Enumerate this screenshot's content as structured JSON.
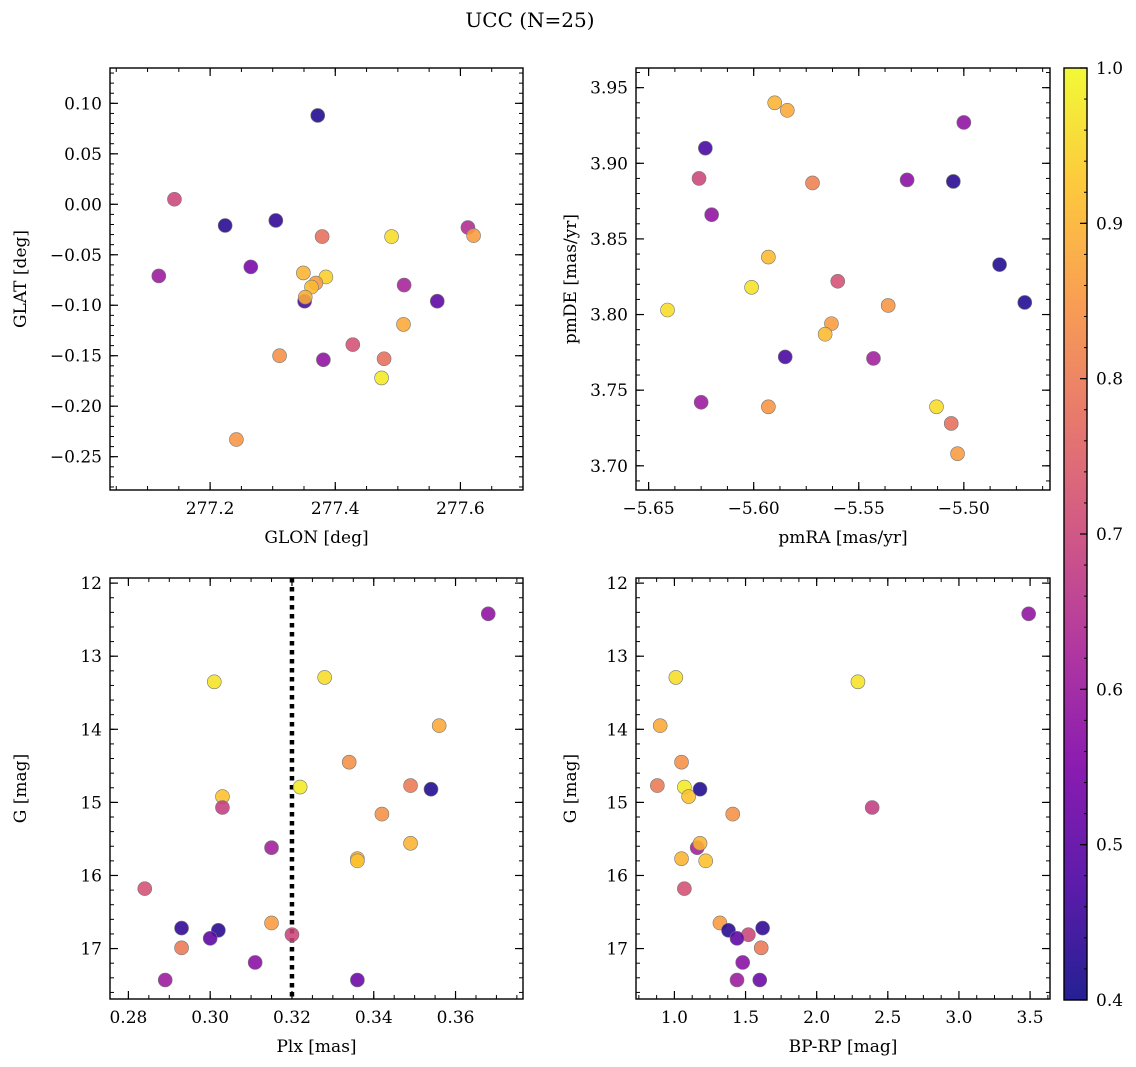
{
  "title": "UCC (N=25)",
  "colorbar": {
    "min": 0.4,
    "max": 1.0,
    "ticks": [
      "0.4",
      "0.5",
      "0.6",
      "0.7",
      "0.8",
      "0.9",
      "1.0"
    ],
    "tick_values": [
      0.4,
      0.5,
      0.6,
      0.7,
      0.8,
      0.9,
      1.0
    ],
    "colormap": "plasma"
  },
  "chart_data": [
    {
      "type": "scatter",
      "name": "GLON-GLAT",
      "xlabel": "GLON [deg]",
      "ylabel": "GLAT [deg]",
      "xlim": [
        277.04,
        277.7
      ],
      "ylim": [
        -0.283,
        0.135
      ],
      "x_ticks": [
        277.2,
        277.4,
        277.6
      ],
      "x_tick_labels": [
        "277.2",
        "277.4",
        "277.6"
      ],
      "y_ticks": [
        0.1,
        0.05,
        0.0,
        -0.05,
        -0.1,
        -0.15,
        -0.2,
        -0.25
      ],
      "y_tick_labels": [
        "0.10",
        "0.05",
        "0.00",
        "−0.05",
        "−0.10",
        "−0.15",
        "−0.20",
        "−0.25"
      ],
      "points": [
        {
          "x": 277.372,
          "y": 0.088,
          "c": 0.42
        },
        {
          "x": 277.143,
          "y": 0.005,
          "c": 0.7
        },
        {
          "x": 277.224,
          "y": -0.021,
          "c": 0.43
        },
        {
          "x": 277.305,
          "y": -0.016,
          "c": 0.44
        },
        {
          "x": 277.379,
          "y": -0.032,
          "c": 0.78
        },
        {
          "x": 277.49,
          "y": -0.032,
          "c": 0.96
        },
        {
          "x": 277.612,
          "y": -0.023,
          "c": 0.64
        },
        {
          "x": 277.621,
          "y": -0.031,
          "c": 0.86
        },
        {
          "x": 277.118,
          "y": -0.071,
          "c": 0.6
        },
        {
          "x": 277.265,
          "y": -0.062,
          "c": 0.54
        },
        {
          "x": 277.349,
          "y": -0.068,
          "c": 0.9
        },
        {
          "x": 277.385,
          "y": -0.072,
          "c": 0.94
        },
        {
          "x": 277.369,
          "y": -0.078,
          "c": 0.86
        },
        {
          "x": 277.362,
          "y": -0.082,
          "c": 0.91
        },
        {
          "x": 277.351,
          "y": -0.096,
          "c": 0.47
        },
        {
          "x": 277.352,
          "y": -0.092,
          "c": 0.89
        },
        {
          "x": 277.51,
          "y": -0.08,
          "c": 0.62
        },
        {
          "x": 277.563,
          "y": -0.096,
          "c": 0.5
        },
        {
          "x": 277.509,
          "y": -0.119,
          "c": 0.88
        },
        {
          "x": 277.311,
          "y": -0.15,
          "c": 0.84
        },
        {
          "x": 277.381,
          "y": -0.154,
          "c": 0.58
        },
        {
          "x": 277.428,
          "y": -0.139,
          "c": 0.72
        },
        {
          "x": 277.478,
          "y": -0.153,
          "c": 0.78
        },
        {
          "x": 277.474,
          "y": -0.172,
          "c": 0.98
        },
        {
          "x": 277.242,
          "y": -0.233,
          "c": 0.85
        }
      ]
    },
    {
      "type": "scatter",
      "name": "pmRA-pmDE",
      "xlabel": "pmRA [mas/yr]",
      "ylabel": "pmDE [mas/yr]",
      "xlim": [
        -5.656,
        -5.459
      ],
      "ylim": [
        3.684,
        3.963
      ],
      "x_ticks": [
        -5.65,
        -5.6,
        -5.55,
        -5.5
      ],
      "x_tick_labels": [
        "−5.65",
        "−5.60",
        "−5.55",
        "−5.50"
      ],
      "y_ticks": [
        3.7,
        3.75,
        3.8,
        3.85,
        3.9,
        3.95
      ],
      "y_tick_labels": [
        "3.70",
        "3.75",
        "3.80",
        "3.85",
        "3.90",
        "3.95"
      ],
      "points": [
        {
          "x": -5.59,
          "y": 3.94,
          "c": 0.9
        },
        {
          "x": -5.584,
          "y": 3.935,
          "c": 0.88
        },
        {
          "x": -5.5,
          "y": 3.927,
          "c": 0.58
        },
        {
          "x": -5.623,
          "y": 3.91,
          "c": 0.47
        },
        {
          "x": -5.626,
          "y": 3.89,
          "c": 0.7
        },
        {
          "x": -5.572,
          "y": 3.887,
          "c": 0.81
        },
        {
          "x": -5.527,
          "y": 3.889,
          "c": 0.57
        },
        {
          "x": -5.505,
          "y": 3.888,
          "c": 0.43
        },
        {
          "x": -5.62,
          "y": 3.866,
          "c": 0.58
        },
        {
          "x": -5.593,
          "y": 3.838,
          "c": 0.91
        },
        {
          "x": -5.483,
          "y": 3.833,
          "c": 0.42
        },
        {
          "x": -5.56,
          "y": 3.822,
          "c": 0.72
        },
        {
          "x": -5.601,
          "y": 3.818,
          "c": 0.97
        },
        {
          "x": -5.641,
          "y": 3.803,
          "c": 0.96
        },
        {
          "x": -5.536,
          "y": 3.806,
          "c": 0.85
        },
        {
          "x": -5.471,
          "y": 3.808,
          "c": 0.42
        },
        {
          "x": -5.563,
          "y": 3.794,
          "c": 0.86
        },
        {
          "x": -5.566,
          "y": 3.787,
          "c": 0.91
        },
        {
          "x": -5.585,
          "y": 3.772,
          "c": 0.47
        },
        {
          "x": -5.543,
          "y": 3.771,
          "c": 0.61
        },
        {
          "x": -5.625,
          "y": 3.742,
          "c": 0.6
        },
        {
          "x": -5.593,
          "y": 3.739,
          "c": 0.85
        },
        {
          "x": -5.513,
          "y": 3.739,
          "c": 0.96
        },
        {
          "x": -5.506,
          "y": 3.728,
          "c": 0.78
        },
        {
          "x": -5.503,
          "y": 3.708,
          "c": 0.86
        }
      ]
    },
    {
      "type": "scatter",
      "name": "Plx-G",
      "xlabel": "Plx [mas]",
      "ylabel": "G [mag]",
      "xlim": [
        0.2755,
        0.3765
      ],
      "ylim": [
        17.69,
        11.93
      ],
      "x_ticks": [
        0.28,
        0.3,
        0.32,
        0.34,
        0.36
      ],
      "x_tick_labels": [
        "0.28",
        "0.30",
        "0.32",
        "0.34",
        "0.36"
      ],
      "y_ticks": [
        12,
        13,
        14,
        15,
        16,
        17
      ],
      "y_tick_labels": [
        "12",
        "13",
        "14",
        "15",
        "16",
        "17"
      ],
      "vline": 0.32,
      "points": [
        {
          "x": 0.368,
          "y": 12.42,
          "c": 0.58
        },
        {
          "x": 0.301,
          "y": 13.35,
          "c": 0.97
        },
        {
          "x": 0.328,
          "y": 13.29,
          "c": 0.96
        },
        {
          "x": 0.356,
          "y": 13.95,
          "c": 0.88
        },
        {
          "x": 0.334,
          "y": 14.45,
          "c": 0.84
        },
        {
          "x": 0.303,
          "y": 14.92,
          "c": 0.92
        },
        {
          "x": 0.303,
          "y": 15.07,
          "c": 0.68
        },
        {
          "x": 0.322,
          "y": 14.79,
          "c": 0.98
        },
        {
          "x": 0.349,
          "y": 14.77,
          "c": 0.8
        },
        {
          "x": 0.354,
          "y": 14.82,
          "c": 0.42
        },
        {
          "x": 0.342,
          "y": 15.16,
          "c": 0.84
        },
        {
          "x": 0.349,
          "y": 15.56,
          "c": 0.9
        },
        {
          "x": 0.315,
          "y": 15.62,
          "c": 0.61
        },
        {
          "x": 0.336,
          "y": 15.77,
          "c": 0.9
        },
        {
          "x": 0.336,
          "y": 15.8,
          "c": 0.92
        },
        {
          "x": 0.284,
          "y": 16.18,
          "c": 0.72
        },
        {
          "x": 0.293,
          "y": 16.72,
          "c": 0.44
        },
        {
          "x": 0.302,
          "y": 16.75,
          "c": 0.43
        },
        {
          "x": 0.315,
          "y": 16.65,
          "c": 0.86
        },
        {
          "x": 0.32,
          "y": 16.81,
          "c": 0.7
        },
        {
          "x": 0.3,
          "y": 16.86,
          "c": 0.5
        },
        {
          "x": 0.293,
          "y": 16.99,
          "c": 0.8
        },
        {
          "x": 0.311,
          "y": 17.19,
          "c": 0.57
        },
        {
          "x": 0.289,
          "y": 17.43,
          "c": 0.6
        },
        {
          "x": 0.336,
          "y": 17.43,
          "c": 0.52
        }
      ]
    },
    {
      "type": "scatter",
      "name": "BPRP-G",
      "xlabel": "BP-RP [mag]",
      "ylabel": "G [mag]",
      "xlim": [
        0.73,
        3.64
      ],
      "ylim": [
        17.69,
        11.93
      ],
      "x_ticks": [
        1.0,
        1.5,
        2.0,
        2.5,
        3.0,
        3.5
      ],
      "x_tick_labels": [
        "1.0",
        "1.5",
        "2.0",
        "2.5",
        "3.0",
        "3.5"
      ],
      "y_ticks": [
        12,
        13,
        14,
        15,
        16,
        17
      ],
      "y_tick_labels": [
        "12",
        "13",
        "14",
        "15",
        "16",
        "17"
      ],
      "points": [
        {
          "x": 3.49,
          "y": 12.42,
          "c": 0.58
        },
        {
          "x": 1.01,
          "y": 13.29,
          "c": 0.96
        },
        {
          "x": 2.29,
          "y": 13.35,
          "c": 0.97
        },
        {
          "x": 0.9,
          "y": 13.95,
          "c": 0.88
        },
        {
          "x": 1.05,
          "y": 14.45,
          "c": 0.84
        },
        {
          "x": 0.88,
          "y": 14.77,
          "c": 0.8
        },
        {
          "x": 1.07,
          "y": 14.79,
          "c": 0.98
        },
        {
          "x": 1.1,
          "y": 14.92,
          "c": 0.92
        },
        {
          "x": 1.18,
          "y": 14.82,
          "c": 0.42
        },
        {
          "x": 2.39,
          "y": 15.07,
          "c": 0.68
        },
        {
          "x": 1.41,
          "y": 15.16,
          "c": 0.84
        },
        {
          "x": 1.16,
          "y": 15.62,
          "c": 0.61
        },
        {
          "x": 1.18,
          "y": 15.56,
          "c": 0.9
        },
        {
          "x": 1.05,
          "y": 15.77,
          "c": 0.9
        },
        {
          "x": 1.22,
          "y": 15.8,
          "c": 0.92
        },
        {
          "x": 1.07,
          "y": 16.18,
          "c": 0.72
        },
        {
          "x": 1.32,
          "y": 16.65,
          "c": 0.86
        },
        {
          "x": 1.38,
          "y": 16.75,
          "c": 0.43
        },
        {
          "x": 1.62,
          "y": 16.72,
          "c": 0.44
        },
        {
          "x": 1.52,
          "y": 16.81,
          "c": 0.7
        },
        {
          "x": 1.44,
          "y": 16.86,
          "c": 0.5
        },
        {
          "x": 1.61,
          "y": 16.99,
          "c": 0.8
        },
        {
          "x": 1.48,
          "y": 17.19,
          "c": 0.57
        },
        {
          "x": 1.44,
          "y": 17.43,
          "c": 0.6
        },
        {
          "x": 1.6,
          "y": 17.43,
          "c": 0.52
        }
      ]
    }
  ]
}
